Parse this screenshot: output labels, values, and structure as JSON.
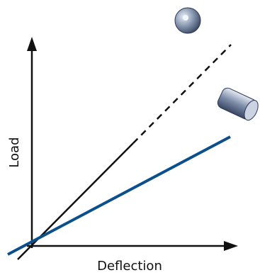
{
  "axes": {
    "y_label": "Load",
    "x_label": "Deflection"
  }
}
